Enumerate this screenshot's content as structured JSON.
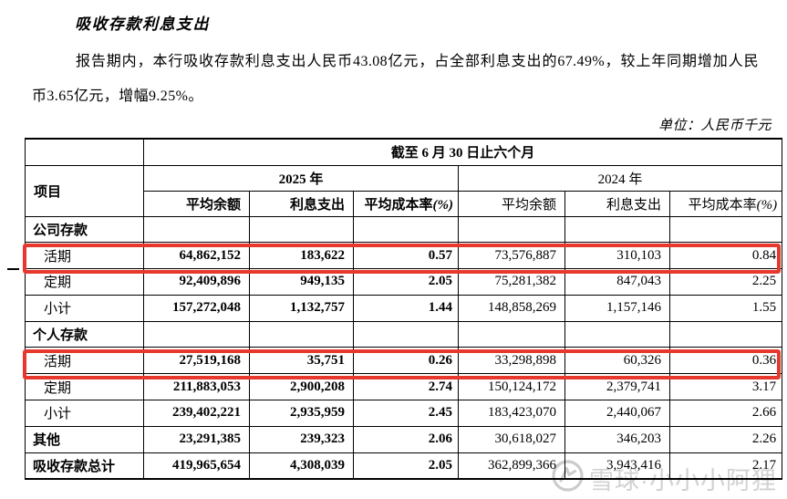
{
  "page": {
    "title": "吸收存款利息支出",
    "para_line1": "报告期内，本行吸收存款利息支出人民币43.08亿元，占全部利息支出的67.49%，较上年同期增加人民",
    "para_line2": "币3.65亿元，增幅9.25%。",
    "unit_note": "单位：人民币千元"
  },
  "table": {
    "period_header": "截至 6 月 30 日止六个月",
    "item_header": "项目",
    "year_groups": [
      {
        "label": "2025 年"
      },
      {
        "label": "2024 年"
      }
    ],
    "sub_headers": {
      "avg_balance": "平均余额",
      "interest_expense": "利息支出",
      "avg_cost": "平均成本率",
      "pct": "(%)"
    },
    "rows": [
      {
        "label": "公司存款",
        "type": "section",
        "highlighted": false,
        "values": [
          "",
          "",
          "",
          "",
          "",
          ""
        ]
      },
      {
        "label": "活期",
        "type": "sub",
        "highlighted": true,
        "values": [
          "64,862,152",
          "183,622",
          "0.57",
          "73,576,887",
          "310,103",
          "0.84"
        ]
      },
      {
        "label": "定期",
        "type": "sub",
        "highlighted": false,
        "values": [
          "92,409,896",
          "949,135",
          "2.05",
          "75,281,382",
          "847,043",
          "2.25"
        ]
      },
      {
        "label": "小计",
        "type": "sub",
        "highlighted": false,
        "values": [
          "157,272,048",
          "1,132,757",
          "1.44",
          "148,858,269",
          "1,157,146",
          "1.55"
        ]
      },
      {
        "label": "个人存款",
        "type": "section",
        "highlighted": false,
        "values": [
          "",
          "",
          "",
          "",
          "",
          ""
        ]
      },
      {
        "label": "活期",
        "type": "sub",
        "highlighted": true,
        "values": [
          "27,519,168",
          "35,751",
          "0.26",
          "33,298,898",
          "60,326",
          "0.36"
        ]
      },
      {
        "label": "定期",
        "type": "sub",
        "highlighted": false,
        "values": [
          "211,883,053",
          "2,900,208",
          "2.74",
          "150,124,172",
          "2,379,741",
          "3.17"
        ]
      },
      {
        "label": "小计",
        "type": "sub",
        "highlighted": false,
        "values": [
          "239,402,221",
          "2,935,959",
          "2.45",
          "183,423,070",
          "2,440,067",
          "2.66"
        ]
      },
      {
        "label": "其他",
        "type": "section",
        "highlighted": false,
        "values": [
          "23,291,385",
          "239,323",
          "2.06",
          "30,618,027",
          "346,203",
          "2.26"
        ]
      },
      {
        "label": "吸收存款总计",
        "type": "section",
        "highlighted": false,
        "values": [
          "419,965,654",
          "4,308,039",
          "2.05",
          "362,899,366",
          "3,943,416",
          "2.17"
        ]
      }
    ]
  },
  "watermark": {
    "brand": "雪球·小小小阿狸"
  },
  "colors": {
    "highlight_red": "#e8382d",
    "watermark_gray": "#d2d2d2"
  }
}
